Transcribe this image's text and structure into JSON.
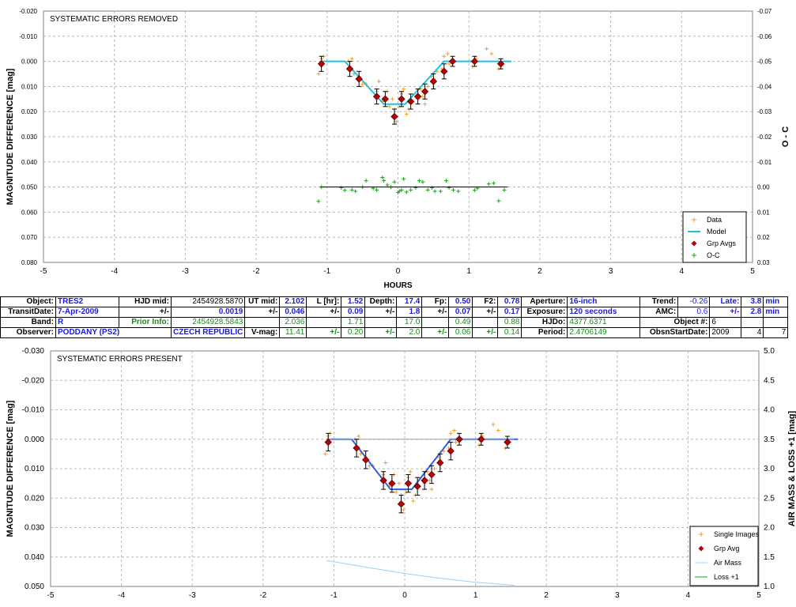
{
  "chart_data": [
    {
      "type": "scatter",
      "title": "SYSTEMATIC ERRORS REMOVED",
      "xlabel": "HOURS",
      "ylabel": "MAGNITUDE DIFFERENCE [mag]",
      "ylabel_right": "O - C",
      "xlim": [
        -5,
        5
      ],
      "ylim": [
        -0.02,
        0.08
      ],
      "y_inverted": true,
      "y2lim": [
        -0.07,
        0.03
      ],
      "grid": true,
      "legend": "bottom-right",
      "xticks": [
        "-5",
        "-4",
        "-3",
        "-2",
        "-1",
        "0",
        "1",
        "2",
        "3",
        "4",
        "5"
      ],
      "yticks": [
        "-0.020",
        "-0.010",
        "0.000",
        "0.010",
        "0.020",
        "0.030",
        "0.040",
        "0.050",
        "0.060",
        "0.070",
        "0.080"
      ],
      "y2ticks": [
        "-0.07",
        "-0.06",
        "-0.05",
        "-0.04",
        "-0.03",
        "-0.02",
        "-0.01",
        "0.00",
        "0.01",
        "0.02",
        "0.03"
      ],
      "legend_labels": [
        "Data",
        "Model",
        "Grp Avgs",
        "O-C"
      ],
      "series": [
        {
          "name": "Data",
          "color": "#f0a030",
          "x": [
            -1.12,
            -1.08,
            -1.05,
            -0.7,
            -0.65,
            -0.62,
            -0.55,
            -0.5,
            -0.45,
            -0.3,
            -0.27,
            -0.22,
            -0.15,
            -0.12,
            -0.08,
            -0.05,
            -0.02,
            0.02,
            0.05,
            0.08,
            0.12,
            0.15,
            0.28,
            0.32,
            0.35,
            0.38,
            0.42,
            0.47,
            0.5,
            0.55,
            0.62,
            0.65,
            0.7,
            0.72,
            0.78,
            1.05,
            1.1,
            1.25,
            1.32,
            1.42,
            1.48
          ],
          "y": [
            0.005,
            -0.001,
            -0.002,
            0.0,
            -0.001,
            0.005,
            0.006,
            0.009,
            0.009,
            0.012,
            0.008,
            0.016,
            0.012,
            0.018,
            0.015,
            0.019,
            0.024,
            0.018,
            0.013,
            0.011,
            0.021,
            0.019,
            0.015,
            0.011,
            0.014,
            0.017,
            0.01,
            0.006,
            0.007,
            0.004,
            0.003,
            -0.002,
            -0.003,
            0.001,
            0.0,
            0.002,
            -0.001,
            -0.005,
            -0.003,
            0.003,
            0.001
          ]
        },
        {
          "name": "Model",
          "color": "#20c0e0",
          "x": [
            -1.1,
            -0.75,
            -0.2,
            0.1,
            0.65,
            1.6
          ],
          "y": [
            0.0,
            0.0,
            0.017,
            0.017,
            0.0,
            0.0
          ]
        },
        {
          "name": "Grp Avgs",
          "color": "#c00000",
          "x": [
            -1.08,
            -0.68,
            -0.55,
            -0.3,
            -0.18,
            -0.05,
            0.05,
            0.18,
            0.28,
            0.38,
            0.5,
            0.65,
            0.77,
            1.08,
            1.45
          ],
          "y": [
            0.001,
            0.003,
            0.007,
            0.014,
            0.015,
            0.022,
            0.015,
            0.016,
            0.014,
            0.012,
            0.008,
            0.004,
            0.0,
            0.0,
            0.001
          ],
          "err": [
            0.003,
            0.003,
            0.003,
            0.003,
            0.003,
            0.003,
            0.003,
            0.003,
            0.003,
            0.003,
            0.003,
            0.003,
            0.002,
            0.002,
            0.002
          ]
        },
        {
          "name": "O-C",
          "color": "#20a020",
          "axis": "right",
          "x": [
            -1.12,
            -1.08,
            -0.8,
            -0.75,
            -0.65,
            -0.6,
            -0.5,
            -0.45,
            -0.35,
            -0.3,
            -0.22,
            -0.2,
            -0.15,
            -0.1,
            -0.05,
            0.0,
            0.02,
            0.05,
            0.08,
            0.12,
            0.18,
            0.25,
            0.3,
            0.35,
            0.42,
            0.48,
            0.52,
            0.6,
            0.68,
            0.72,
            0.78,
            0.85,
            1.08,
            1.12,
            1.28,
            1.35,
            1.42,
            1.5
          ],
          "y": [
            0.0057,
            0.0,
            0.0003,
            0.0013,
            0.0012,
            0.0017,
            0.0,
            -0.0025,
            0.0005,
            0.0012,
            -0.0038,
            -0.0025,
            -0.0008,
            0.0,
            -0.002,
            0.0022,
            0.0017,
            0.0012,
            -0.0032,
            0.002,
            0.0012,
            0.0003,
            -0.0025,
            -0.002,
            0.0012,
            0.0003,
            0.0017,
            0.0017,
            -0.0025,
            0.0003,
            0.0012,
            0.0017,
            0.0013,
            0.0005,
            -0.0012,
            -0.0015,
            0.0055,
            0.0012
          ]
        },
        {
          "name": "O-C zero",
          "color": "#000000",
          "axis": "right",
          "x": [
            -1.1,
            1.55
          ],
          "y": [
            0.0,
            0.0
          ]
        }
      ]
    },
    {
      "type": "scatter",
      "title": "SYSTEMATIC ERRORS PRESENT",
      "xlabel": "",
      "ylabel": "MAGNITUDE DIFFERENCE [mag]",
      "ylabel_right": "AIR MASS & LOSS +1 [mag]",
      "xlim": [
        -5,
        5
      ],
      "ylim": [
        -0.03,
        0.05
      ],
      "y_inverted": true,
      "y2lim": [
        1.0,
        5.0
      ],
      "grid": true,
      "legend": "bottom-right",
      "xticks": [
        "-5",
        "-4",
        "-3",
        "-2",
        "-1",
        "0",
        "1",
        "2",
        "3",
        "4",
        "5"
      ],
      "yticks": [
        "-0.030",
        "-0.020",
        "-0.010",
        "0.000",
        "0.010",
        "0.020",
        "0.030",
        "0.040",
        "0.050"
      ],
      "y2ticks": [
        "5.0",
        "4.5",
        "4.0",
        "3.5",
        "3.0",
        "2.5",
        "2.0",
        "1.5",
        "1.0"
      ],
      "legend_labels": [
        "Single Images",
        "Grp Avg",
        "Air Mass",
        "Loss +1"
      ],
      "series": [
        {
          "name": "Single Images",
          "color": "#f0a030",
          "x": [
            -1.12,
            -1.08,
            -1.05,
            -0.7,
            -0.65,
            -0.62,
            -0.55,
            -0.5,
            -0.45,
            -0.3,
            -0.27,
            -0.22,
            -0.15,
            -0.12,
            -0.08,
            -0.05,
            -0.02,
            0.02,
            0.05,
            0.08,
            0.12,
            0.15,
            0.28,
            0.32,
            0.35,
            0.38,
            0.42,
            0.47,
            0.5,
            0.55,
            0.62,
            0.65,
            0.7,
            0.72,
            0.78,
            1.05,
            1.1,
            1.25,
            1.32,
            1.42,
            1.48
          ],
          "y": [
            0.005,
            -0.001,
            -0.002,
            0.0,
            -0.001,
            0.005,
            0.006,
            0.009,
            0.009,
            0.012,
            0.008,
            0.016,
            0.012,
            0.018,
            0.015,
            0.019,
            0.024,
            0.018,
            0.013,
            0.011,
            0.021,
            0.019,
            0.015,
            0.011,
            0.014,
            0.017,
            0.01,
            0.006,
            0.007,
            0.004,
            0.003,
            -0.002,
            -0.003,
            0.001,
            0.0,
            0.002,
            -0.001,
            -0.005,
            -0.003,
            0.003,
            0.001
          ]
        },
        {
          "name": "Model",
          "color": "#3060e0",
          "x": [
            -1.1,
            -0.75,
            -0.2,
            0.1,
            0.65,
            1.6
          ],
          "y": [
            0.0,
            0.0,
            0.017,
            0.017,
            0.0,
            0.0
          ]
        },
        {
          "name": "Baseline",
          "color": "#a0a0a0",
          "x": [
            -1.1,
            1.55
          ],
          "y": [
            0.0,
            0.0
          ]
        },
        {
          "name": "Grp Avg",
          "color": "#c00000",
          "x": [
            -1.08,
            -0.68,
            -0.55,
            -0.3,
            -0.18,
            -0.05,
            0.05,
            0.18,
            0.28,
            0.38,
            0.5,
            0.65,
            0.77,
            1.08,
            1.45
          ],
          "y": [
            0.001,
            0.003,
            0.007,
            0.014,
            0.015,
            0.022,
            0.015,
            0.016,
            0.014,
            0.012,
            0.008,
            0.004,
            0.0,
            0.0,
            0.001
          ],
          "err": [
            0.003,
            0.003,
            0.003,
            0.003,
            0.003,
            0.003,
            0.003,
            0.003,
            0.003,
            0.003,
            0.003,
            0.003,
            0.002,
            0.002,
            0.002
          ]
        },
        {
          "name": "Air Mass",
          "color": "#a0d0f0",
          "axis": "right",
          "x": [
            -1.1,
            -0.5,
            0.0,
            0.5,
            1.0,
            1.55
          ],
          "y": [
            1.44,
            1.32,
            1.22,
            1.14,
            1.07,
            1.02
          ]
        }
      ]
    }
  ],
  "info": {
    "row1": [
      "Object:",
      "TRES2",
      "HJD mid:",
      "2454928.5870",
      "UT mid:",
      "2.102",
      "L [hr]:",
      "1.52",
      "Depth:",
      "17.4",
      "Fp:",
      "0.50",
      "F2:",
      "0.78",
      "Aperture:",
      "16-inch",
      "Trend:",
      "-0.26",
      "Late:",
      "3.8",
      "min"
    ],
    "row2": [
      "TransitDate:",
      "7-Apr-2009",
      "+/-",
      "0.0019",
      "+/-",
      "0.046",
      "+/-",
      "0.09",
      "+/-",
      "1.8",
      "+/-",
      "0.07",
      "+/-",
      "0.17",
      "Exposure:",
      "120 seconds",
      "AMC:",
      "0.6",
      "+/-",
      "2.8",
      "min"
    ],
    "row3": [
      "Band:",
      "R",
      "Prior Info:",
      "2454928.5843",
      "2.036",
      "1.71",
      "17.0",
      "0.49",
      "0.88",
      "HJDo:",
      "4377.6371",
      "Object #:",
      "6"
    ],
    "row4": [
      "Observer:",
      "PODDANY (PS2)",
      "CZECH REPUBLIC",
      "V-mag:",
      "11.41",
      "+/-",
      "0.20",
      "+/-",
      "2.0",
      "+/-",
      "0.06",
      "+/-",
      "0.14",
      "Period:",
      "2.4706149",
      "ObsnStartDate:",
      "2009",
      "4",
      "7"
    ]
  }
}
